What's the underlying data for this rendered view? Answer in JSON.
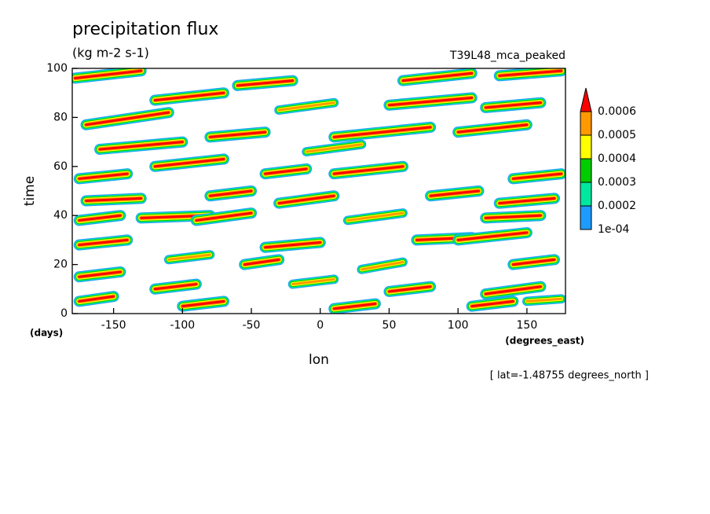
{
  "chart_data": {
    "type": "contour",
    "title": "precipitation flux",
    "subtitle": "(kg m-2 s-1)",
    "dataset": "T39L48_mca_peaked",
    "y_label": "time",
    "y_units": "(days)",
    "x_label": "lon",
    "x_units": "(degrees_east)",
    "annotation": "[ lat=-1.48755 degrees_north ]",
    "xlim": [
      -180,
      178
    ],
    "xticks": [
      -150,
      -100,
      -50,
      0,
      50,
      100,
      150
    ],
    "ylim": [
      0,
      100
    ],
    "yticks": [
      0,
      20,
      40,
      60,
      80,
      100
    ],
    "levels": [
      {
        "value": 0.0001,
        "label": "1e-04"
      },
      0.0002,
      0.0003,
      0.0004,
      0.0005,
      0.0006
    ],
    "colors": [
      "#1e9bff",
      "#00e8a0",
      "#00cc00",
      "#ffff00",
      "#ff9900",
      "#ff0000"
    ],
    "features": [
      {
        "x": [
          -178,
          -130
        ],
        "y": [
          96,
          99
        ],
        "peak": 0.0007
      },
      {
        "x": [
          -60,
          -20
        ],
        "y": [
          93,
          95
        ],
        "peak": 0.0007
      },
      {
        "x": [
          60,
          110
        ],
        "y": [
          95,
          98
        ],
        "peak": 0.0007
      },
      {
        "x": [
          130,
          175
        ],
        "y": [
          97,
          99
        ],
        "peak": 0.0007
      },
      {
        "x": [
          -170,
          -110
        ],
        "y": [
          77,
          82
        ],
        "peak": 0.0007
      },
      {
        "x": [
          -120,
          -70
        ],
        "y": [
          87,
          90
        ],
        "peak": 0.0007
      },
      {
        "x": [
          -30,
          10
        ],
        "y": [
          83,
          86
        ],
        "peak": 0.0005
      },
      {
        "x": [
          50,
          110
        ],
        "y": [
          85,
          88
        ],
        "peak": 0.0007
      },
      {
        "x": [
          120,
          160
        ],
        "y": [
          84,
          86
        ],
        "peak": 0.0007
      },
      {
        "x": [
          -160,
          -100
        ],
        "y": [
          67,
          70
        ],
        "peak": 0.0007
      },
      {
        "x": [
          -80,
          -40
        ],
        "y": [
          72,
          74
        ],
        "peak": 0.0007
      },
      {
        "x": [
          10,
          80
        ],
        "y": [
          72,
          76
        ],
        "peak": 0.0007
      },
      {
        "x": [
          100,
          150
        ],
        "y": [
          74,
          77
        ],
        "peak": 0.0007
      },
      {
        "x": [
          -10,
          30
        ],
        "y": [
          66,
          69
        ],
        "peak": 0.0005
      },
      {
        "x": [
          -175,
          -140
        ],
        "y": [
          55,
          57
        ],
        "peak": 0.0007
      },
      {
        "x": [
          -120,
          -70
        ],
        "y": [
          60,
          63
        ],
        "peak": 0.0007
      },
      {
        "x": [
          -40,
          -10
        ],
        "y": [
          57,
          59
        ],
        "peak": 0.0007
      },
      {
        "x": [
          10,
          60
        ],
        "y": [
          57,
          60
        ],
        "peak": 0.0007
      },
      {
        "x": [
          140,
          175
        ],
        "y": [
          55,
          57
        ],
        "peak": 0.0007
      },
      {
        "x": [
          -170,
          -130
        ],
        "y": [
          46,
          47
        ],
        "peak": 0.0007
      },
      {
        "x": [
          -80,
          -50
        ],
        "y": [
          48,
          50
        ],
        "peak": 0.0007
      },
      {
        "x": [
          -30,
          10
        ],
        "y": [
          45,
          48
        ],
        "peak": 0.0007
      },
      {
        "x": [
          80,
          115
        ],
        "y": [
          48,
          50
        ],
        "peak": 0.0007
      },
      {
        "x": [
          130,
          170
        ],
        "y": [
          45,
          47
        ],
        "peak": 0.0007
      },
      {
        "x": [
          -175,
          -145
        ],
        "y": [
          38,
          40
        ],
        "peak": 0.0007
      },
      {
        "x": [
          -130,
          -80
        ],
        "y": [
          39,
          40
        ],
        "peak": 0.0007
      },
      {
        "x": [
          -90,
          -50
        ],
        "y": [
          38,
          41
        ],
        "peak": 0.0007
      },
      {
        "x": [
          20,
          60
        ],
        "y": [
          38,
          41
        ],
        "peak": 0.0005
      },
      {
        "x": [
          120,
          160
        ],
        "y": [
          39,
          40
        ],
        "peak": 0.0007
      },
      {
        "x": [
          -175,
          -140
        ],
        "y": [
          28,
          30
        ],
        "peak": 0.0007
      },
      {
        "x": [
          -40,
          0
        ],
        "y": [
          27,
          29
        ],
        "peak": 0.0007
      },
      {
        "x": [
          70,
          110
        ],
        "y": [
          30,
          31
        ],
        "peak": 0.0007
      },
      {
        "x": [
          100,
          150
        ],
        "y": [
          30,
          33
        ],
        "peak": 0.0007
      },
      {
        "x": [
          -110,
          -80
        ],
        "y": [
          22,
          24
        ],
        "peak": 0.0005
      },
      {
        "x": [
          -55,
          -30
        ],
        "y": [
          20,
          22
        ],
        "peak": 0.0007
      },
      {
        "x": [
          30,
          60
        ],
        "y": [
          18,
          21
        ],
        "peak": 0.0005
      },
      {
        "x": [
          140,
          170
        ],
        "y": [
          20,
          22
        ],
        "peak": 0.0007
      },
      {
        "x": [
          -175,
          -145
        ],
        "y": [
          15,
          17
        ],
        "peak": 0.0007
      },
      {
        "x": [
          -120,
          -90
        ],
        "y": [
          10,
          12
        ],
        "peak": 0.0007
      },
      {
        "x": [
          -20,
          10
        ],
        "y": [
          12,
          14
        ],
        "peak": 0.0005
      },
      {
        "x": [
          50,
          80
        ],
        "y": [
          9,
          11
        ],
        "peak": 0.0007
      },
      {
        "x": [
          120,
          160
        ],
        "y": [
          8,
          11
        ],
        "peak": 0.0007
      },
      {
        "x": [
          -175,
          -150
        ],
        "y": [
          5,
          7
        ],
        "peak": 0.0007
      },
      {
        "x": [
          -100,
          -70
        ],
        "y": [
          3,
          5
        ],
        "peak": 0.0007
      },
      {
        "x": [
          10,
          40
        ],
        "y": [
          2,
          4
        ],
        "peak": 0.0007
      },
      {
        "x": [
          110,
          140
        ],
        "y": [
          3,
          5
        ],
        "peak": 0.0007
      },
      {
        "x": [
          150,
          175
        ],
        "y": [
          5,
          6
        ],
        "peak": 0.0005
      }
    ]
  }
}
